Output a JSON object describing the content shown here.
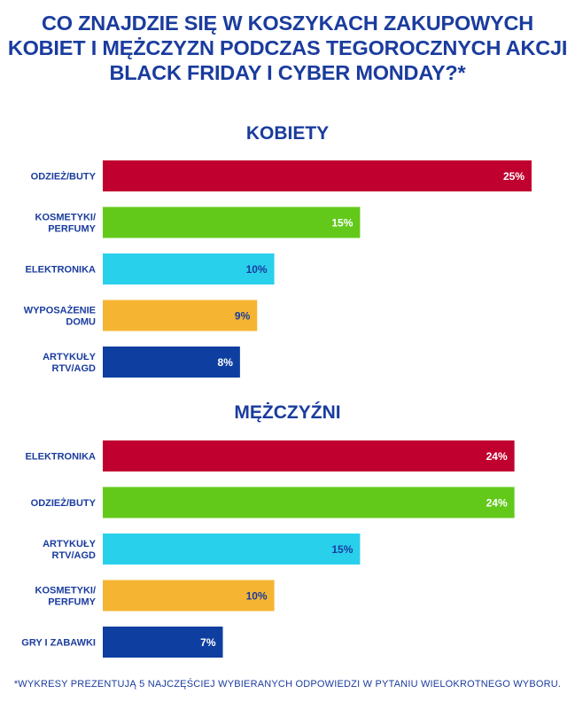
{
  "title_lines": [
    "CO ZNAJDZIE SIĘ W KOSZYKACH ZAKUPOWYCH",
    "KOBIET I MĘŻCZYZN PODCZAS TEGOROCZNYCH AKCJI",
    "BLACK FRIDAY I CYBER MONDAY?*"
  ],
  "footnote": "*WYKRESY PREZENTUJĄ 5 NAJCZĘŚCIEJ WYBIERANYCH ODPOWIEDZI W PYTANIU WIELOKROTNEGO WYBORU.",
  "chart_data": [
    {
      "type": "bar",
      "orientation": "horizontal",
      "title": "KOBIETY",
      "categories": [
        [
          "ODZIEŻ/BUTY"
        ],
        [
          "KOSMETYKI/",
          "PERFUMY"
        ],
        [
          "ELEKTRONIKA"
        ],
        [
          "WYPOSAŻENIE",
          "DOMU"
        ],
        [
          "ARTYKUŁY",
          "RTV/AGD"
        ]
      ],
      "values": [
        25,
        15,
        10,
        9,
        8
      ],
      "value_labels": [
        "25%",
        "15%",
        "10%",
        "9%",
        "8%"
      ],
      "colors": [
        "#c0002f",
        "#62c91a",
        "#29d0ec",
        "#f5b532",
        "#0e3fa0"
      ],
      "label_colors": [
        "#ffffff",
        "#ffffff",
        "#1a3c9e",
        "#1a3c9e",
        "#ffffff"
      ],
      "xlim": [
        0,
        25
      ],
      "grid": false,
      "legend": "none"
    },
    {
      "type": "bar",
      "orientation": "horizontal",
      "title": "MĘŻCZYŹNI",
      "categories": [
        [
          "ELEKTRONIKA"
        ],
        [
          "ODZIEŻ/BUTY"
        ],
        [
          "ARTYKUŁY",
          "RTV/AGD"
        ],
        [
          "KOSMETYKI/",
          "PERFUMY"
        ],
        [
          "GRY I ZABAWKI"
        ]
      ],
      "values": [
        24,
        24,
        15,
        10,
        7
      ],
      "value_labels": [
        "24%",
        "24%",
        "15%",
        "10%",
        "7%"
      ],
      "colors": [
        "#c0002f",
        "#62c91a",
        "#29d0ec",
        "#f5b532",
        "#0e3fa0"
      ],
      "label_colors": [
        "#ffffff",
        "#ffffff",
        "#1a3c9e",
        "#1a3c9e",
        "#ffffff"
      ],
      "xlim": [
        0,
        25
      ],
      "grid": false,
      "legend": "none"
    }
  ]
}
